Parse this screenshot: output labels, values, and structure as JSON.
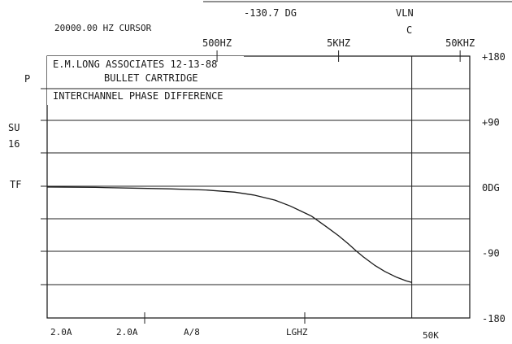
{
  "header": {
    "cursor_readout": "20000.00 HZ CURSOR",
    "phase_readout": "-130.7 DG",
    "channel_label": "VLN",
    "channel_value": "C"
  },
  "left_labels": [
    "P",
    "SU",
    "16",
    "TF"
  ],
  "annotation": {
    "line1": "E.M.LONG ASSOCIATES  12-13-88",
    "line2": "BULLET CARTRIDGE",
    "line3": "INTERCHANNEL PHASE DIFFERENCE"
  },
  "footer": {
    "labels": [
      "2.0A",
      "2.0A",
      "A/8",
      "LGHZ",
      "50K"
    ]
  },
  "colors": {
    "ink": "#1a1a1a",
    "background": "#ffffff"
  },
  "chart_data": {
    "type": "line",
    "title": "INTERCHANNEL PHASE DIFFERENCE",
    "x_scale": "log",
    "xlim": [
      20,
      60000
    ],
    "ylim": [
      -180,
      180
    ],
    "x_tick_labels": [
      {
        "value": 500,
        "label": "500HZ"
      },
      {
        "value": 5000,
        "label": "5KHZ"
      },
      {
        "value": 50000,
        "label": "50KHZ"
      }
    ],
    "y_tick_labels": [
      {
        "value": 180,
        "label": "+180"
      },
      {
        "value": 90,
        "label": "+90"
      },
      {
        "value": 0,
        "label": "0DG"
      },
      {
        "value": -90,
        "label": "-90"
      },
      {
        "value": -180,
        "label": "-180"
      }
    ],
    "cursor_x": 20000,
    "grid": true,
    "series": [
      {
        "x": [
          20,
          50,
          100,
          200,
          400,
          700,
          1000,
          1500,
          2000,
          3000,
          4000,
          5000,
          6000,
          7000,
          8000,
          10000,
          12000,
          15000,
          18000,
          20000
        ],
        "y": [
          0,
          -0.5,
          -1.5,
          -2.5,
          -4,
          -7,
          -11,
          -18,
          -26,
          -40,
          -55,
          -67,
          -78,
          -88,
          -96,
          -108,
          -116,
          -124,
          -129,
          -131
        ]
      }
    ]
  }
}
